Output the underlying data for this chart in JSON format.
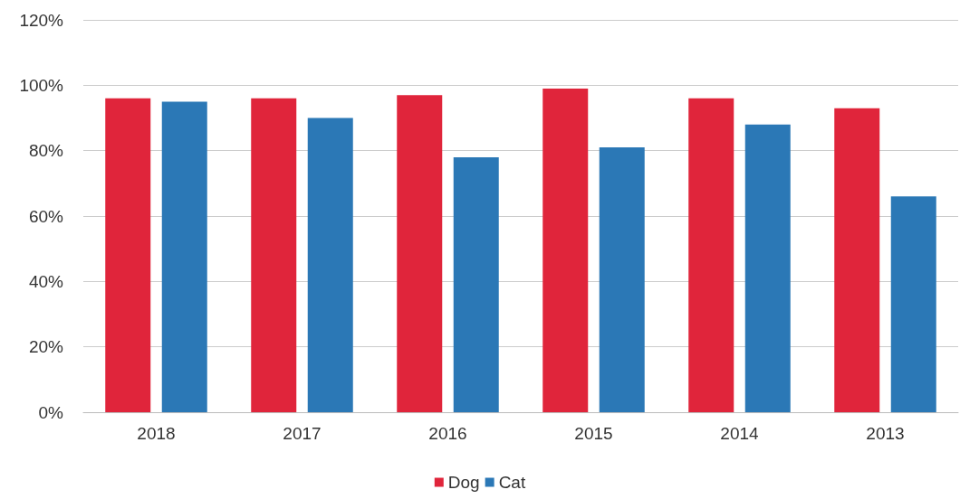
{
  "chart_data": {
    "type": "bar",
    "categories": [
      "2018",
      "2017",
      "2016",
      "2015",
      "2014",
      "2013"
    ],
    "series": [
      {
        "name": "Dog",
        "color": "#e0253b",
        "values": [
          96,
          96,
          97,
          99,
          96,
          93
        ]
      },
      {
        "name": "Cat",
        "color": "#2b78b6",
        "values": [
          95,
          90,
          78,
          81,
          88,
          66
        ]
      }
    ],
    "ylim": [
      0,
      120
    ],
    "yticks": [
      {
        "value": 0,
        "label": "0%"
      },
      {
        "value": 20,
        "label": "20%"
      },
      {
        "value": 40,
        "label": "40%"
      },
      {
        "value": 60,
        "label": "60%"
      },
      {
        "value": 80,
        "label": "80%"
      },
      {
        "value": 100,
        "label": "100%"
      },
      {
        "value": 120,
        "label": "120%"
      }
    ],
    "grid": "y",
    "legend": "bottom"
  }
}
